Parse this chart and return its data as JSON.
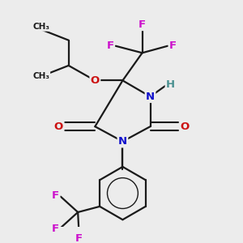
{
  "bg_color": "#ececec",
  "bond_color": "#1a1a1a",
  "colors": {
    "N": "#1010cc",
    "O": "#cc1010",
    "F": "#cc10cc",
    "H": "#4a9090",
    "C": "#1a1a1a"
  },
  "figsize": [
    3.0,
    3.0
  ],
  "dpi": 100
}
